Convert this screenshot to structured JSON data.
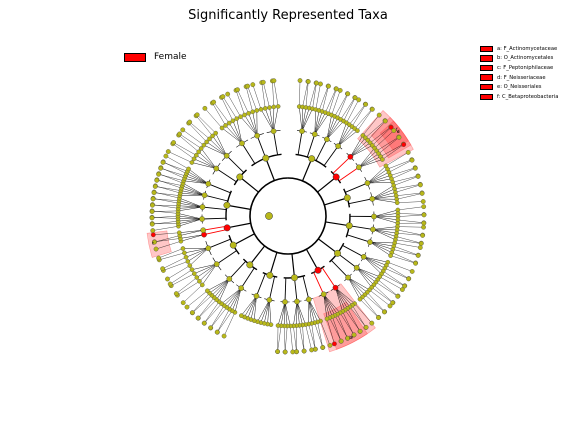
{
  "title": "Significantly Represented Taxa",
  "colors": {
    "enriched": "#ff0000",
    "background_node": "#b8b81a",
    "highlight": "#ff0000"
  },
  "group_legend": {
    "label": "Female",
    "color": "#ff0000"
  },
  "taxa_legend": [
    {
      "label": "a: F_Actinomycetaceae"
    },
    {
      "label": "b: O_Actinomycetales"
    },
    {
      "label": "c: F_Peptoniphilaceae"
    },
    {
      "label": "d: F_Neisseriaceae"
    },
    {
      "label": "e: O_Neisseriales"
    },
    {
      "label": "f: C_Betaproteobacteria"
    }
  ],
  "diagram": {
    "type": "cladogram",
    "highlight_sectors": [
      {
        "labels": [
          "f",
          "e",
          "d"
        ],
        "group": "Female"
      },
      {
        "labels": [
          "a",
          "b"
        ],
        "group": "Female"
      },
      {
        "labels": [
          "c"
        ],
        "group": "Female"
      }
    ]
  }
}
